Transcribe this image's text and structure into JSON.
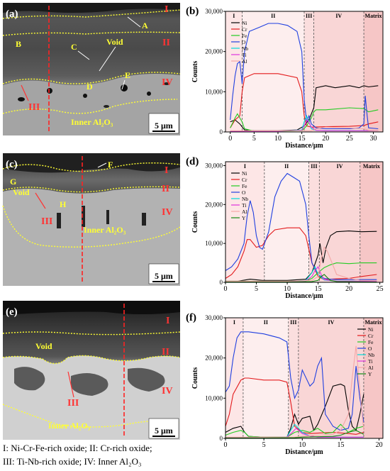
{
  "panels": [
    {
      "id": "a",
      "tag": "(a)",
      "scale_bar": "5 μm",
      "annotations": {
        "I": "I",
        "II": "II",
        "III": "III",
        "IV": "IV",
        "A": "A",
        "B": "B",
        "C": "C",
        "D": "D",
        "E": "E",
        "void": "Void",
        "inner": "Inner Al₂O₃"
      }
    },
    {
      "id": "c",
      "tag": "(c)",
      "scale_bar": "5 μm",
      "annotations": {
        "I": "I",
        "II": "II",
        "III": "III",
        "IV": "IV",
        "F": "F",
        "G": "G",
        "H": "H",
        "void": "Void",
        "inner": "Inner Al₂O₃"
      }
    },
    {
      "id": "e",
      "tag": "(e)",
      "scale_bar": "5 μm",
      "annotations": {
        "I": "I",
        "II": "II",
        "III": "III",
        "IV": "IV",
        "void": "Void",
        "inner": "Inner Al₂O₃"
      }
    }
  ],
  "caption_lines": [
    "I: Ni-Cr-Fe-rich oxide;  II: Cr-rich oxide;",
    "III: Ti-Nb-rich oxide;  IV: Inner Al₂O₃"
  ],
  "colors": {
    "Ni": "#000000",
    "Cr": "#e31a1c",
    "Fe": "#22cc22",
    "O": "#1f3fe0",
    "Nb": "#00d8d8",
    "Ti": "#dd33dd",
    "Al": "#f4a6a6",
    "Y": "#118811"
  },
  "chart_data": [
    {
      "type": "line",
      "tag": "(b)",
      "xlabel": "Distance/μm",
      "ylabel": "Counts",
      "xlim": [
        -1,
        32
      ],
      "ylim": [
        0,
        30000
      ],
      "xticks": [
        0,
        5,
        10,
        15,
        20,
        25,
        30
      ],
      "yticks": [
        0,
        10000,
        20000,
        30000
      ],
      "ytick_labels": [
        "0",
        "10,000",
        "20,000",
        "30,000"
      ],
      "legend_position": "top-left",
      "zones": [
        {
          "label": "I",
          "x0": -1,
          "x1": 2.5
        },
        {
          "label": "II",
          "x0": 2.5,
          "x1": 15.5
        },
        {
          "label": "III",
          "x0": 15.5,
          "x1": 17.5
        },
        {
          "label": "IV",
          "x0": 17.5,
          "x1": 28
        },
        {
          "label": "Matrix",
          "x0": 28,
          "x1": 32
        }
      ],
      "series": [
        {
          "name": "Ni",
          "x": [
            0,
            1,
            2,
            3,
            5,
            10,
            14,
            15.5,
            16.5,
            17.5,
            18,
            20,
            22,
            25,
            27,
            28,
            29,
            31
          ],
          "y": [
            2500,
            3000,
            2000,
            500,
            300,
            300,
            500,
            1500,
            3000,
            6000,
            11000,
            11500,
            11000,
            11500,
            11000,
            11500,
            11200,
            11500
          ]
        },
        {
          "name": "Cr",
          "x": [
            0,
            1,
            2,
            2.5,
            3,
            5,
            10,
            14,
            15,
            15.5,
            16,
            17,
            20,
            25,
            28,
            29,
            31
          ],
          "y": [
            1000,
            3000,
            4000,
            10000,
            13500,
            14500,
            14500,
            13500,
            10000,
            4000,
            1500,
            1200,
            1300,
            1400,
            1600,
            2000,
            2500
          ]
        },
        {
          "name": "Fe",
          "x": [
            0,
            1,
            1.5,
            2.5,
            3,
            5,
            10,
            15,
            16,
            17,
            17.5,
            18,
            20,
            25,
            28,
            29,
            31
          ],
          "y": [
            1000,
            3500,
            4500,
            2500,
            800,
            200,
            200,
            300,
            1500,
            3500,
            5000,
            5500,
            5500,
            6000,
            5800,
            5000,
            5500
          ]
        },
        {
          "name": "O",
          "x": [
            0,
            0.5,
            1,
            1.5,
            2,
            2.5,
            3,
            4,
            6,
            8,
            10,
            12,
            14,
            15,
            15.5,
            16,
            16.5,
            17,
            18,
            20,
            25,
            27,
            28,
            28.3,
            28.7,
            29,
            31
          ],
          "y": [
            3000,
            9000,
            14000,
            17000,
            17500,
            12000,
            20000,
            25000,
            26000,
            27000,
            27000,
            26500,
            25000,
            20000,
            8000,
            2500,
            4000,
            2000,
            1000,
            800,
            800,
            1000,
            2000,
            9000,
            4000,
            1000,
            800
          ]
        },
        {
          "name": "Nb",
          "x": [
            0,
            5,
            10,
            15,
            15.5,
            16,
            16.5,
            17,
            18,
            20,
            25,
            31
          ],
          "y": [
            200,
            200,
            200,
            500,
            2500,
            4000,
            2500,
            800,
            400,
            300,
            300,
            300
          ]
        },
        {
          "name": "Ti",
          "x": [
            0,
            5,
            10,
            15,
            15.7,
            16.2,
            17,
            18,
            20,
            25,
            31
          ],
          "y": [
            200,
            200,
            200,
            400,
            2000,
            3000,
            1200,
            400,
            300,
            300,
            300
          ]
        },
        {
          "name": "Al",
          "x": [
            0,
            5,
            10,
            15,
            17,
            18,
            20,
            25,
            28,
            29,
            31
          ],
          "y": [
            300,
            300,
            300,
            300,
            300,
            800,
            1200,
            1000,
            800,
            400,
            300
          ]
        }
      ]
    },
    {
      "type": "line",
      "tag": "(d)",
      "xlabel": "Distance/μm",
      "ylabel": "Counts",
      "xlim": [
        0,
        25.5
      ],
      "ylim": [
        0,
        31000
      ],
      "xticks": [
        0,
        5,
        10,
        15,
        20,
        25
      ],
      "yticks": [
        0,
        10000,
        20000,
        30000
      ],
      "ytick_labels": [
        "0",
        "10,000",
        "20,000",
        "30,000"
      ],
      "legend_position": "top-left",
      "zones": [
        {
          "label": "I",
          "x0": 0,
          "x1": 6.3
        },
        {
          "label": "II",
          "x0": 6.3,
          "x1": 13.5
        },
        {
          "label": "III",
          "x0": 13.5,
          "x1": 15.2
        },
        {
          "label": "IV",
          "x0": 15.2,
          "x1": 21.8
        },
        {
          "label": "Matrix",
          "x0": 21.8,
          "x1": 25.5
        }
      ],
      "series": [
        {
          "name": "Ni",
          "x": [
            0,
            2,
            4,
            6,
            10,
            13,
            14,
            15,
            15.3,
            15.8,
            16.3,
            17,
            18,
            20,
            22,
            24.5
          ],
          "y": [
            300,
            300,
            800,
            500,
            500,
            800,
            2500,
            7000,
            10000,
            5000,
            9000,
            12000,
            13000,
            13200,
            13000,
            13100
          ]
        },
        {
          "name": "Cr",
          "x": [
            0,
            1,
            2,
            3,
            3.5,
            4,
            5,
            6,
            7,
            8,
            10,
            12,
            13,
            14,
            15,
            16,
            18,
            20,
            22,
            24.5
          ],
          "y": [
            1000,
            2000,
            4000,
            8000,
            11000,
            11000,
            9000,
            9500,
            12000,
            13500,
            14000,
            14000,
            12000,
            5000,
            1500,
            700,
            900,
            1000,
            1500,
            2000
          ]
        },
        {
          "name": "Fe",
          "x": [
            0,
            5,
            10,
            13,
            14,
            15,
            16,
            17,
            18,
            20,
            22,
            24.5
          ],
          "y": [
            300,
            300,
            300,
            400,
            1000,
            2500,
            3800,
            4500,
            5000,
            4800,
            5000,
            5000
          ]
        },
        {
          "name": "O",
          "x": [
            0,
            1,
            2,
            3,
            3.5,
            4,
            4.5,
            5,
            5.5,
            6,
            7,
            8,
            9,
            10,
            11,
            12,
            13,
            13.5,
            14,
            15,
            16,
            17,
            18,
            20,
            24.5
          ],
          "y": [
            3000,
            4000,
            6000,
            10000,
            17000,
            21000,
            18000,
            12000,
            9000,
            8500,
            13000,
            22000,
            26000,
            28000,
            27000,
            26000,
            20000,
            12000,
            5000,
            2000,
            1000,
            800,
            700,
            700,
            700
          ]
        },
        {
          "name": "Nb",
          "x": [
            0,
            10,
            13,
            14,
            14.5,
            15,
            16,
            18,
            24.5
          ],
          "y": [
            200,
            200,
            500,
            2500,
            4000,
            2000,
            600,
            300,
            300
          ]
        },
        {
          "name": "Ti",
          "x": [
            0,
            10,
            13,
            14,
            14.5,
            15,
            15.5,
            16,
            18,
            24.5
          ],
          "y": [
            200,
            200,
            400,
            1500,
            3000,
            4000,
            2000,
            700,
            300,
            300
          ]
        },
        {
          "name": "Al",
          "x": [
            0,
            10,
            14,
            15,
            15.5,
            16,
            16.5,
            17,
            17.5,
            18,
            20,
            22,
            24.5
          ],
          "y": [
            300,
            300,
            500,
            1500,
            6000,
            9000,
            8000,
            6000,
            4000,
            2000,
            1000,
            500,
            400
          ]
        },
        {
          "name": "Y",
          "x": [
            0,
            10,
            14,
            15,
            15.5,
            16,
            16.5,
            17,
            18,
            24.5
          ],
          "y": [
            100,
            100,
            200,
            500,
            1500,
            2000,
            1200,
            500,
            200,
            100
          ]
        }
      ]
    },
    {
      "type": "line",
      "tag": "(f)",
      "xlabel": "Distance/μm",
      "ylabel": "Counts",
      "xlim": [
        0,
        20.5
      ],
      "ylim": [
        0,
        30000
      ],
      "xticks": [
        0,
        5,
        10,
        15,
        20
      ],
      "yticks": [
        0,
        10000,
        20000,
        30000
      ],
      "ytick_labels": [
        "0",
        "10,000",
        "20,000",
        "30,000"
      ],
      "legend_position": "top-right",
      "zones": [
        {
          "label": "I",
          "x0": 0,
          "x1": 2.3
        },
        {
          "label": "II",
          "x0": 2.3,
          "x1": 8.2
        },
        {
          "label": "III",
          "x0": 8.2,
          "x1": 9.5
        },
        {
          "label": "IV",
          "x0": 9.5,
          "x1": 18
        },
        {
          "label": "Matrix",
          "x0": 18,
          "x1": 20.5
        }
      ],
      "series": [
        {
          "name": "Ni",
          "x": [
            0,
            1,
            2,
            2.5,
            3,
            5,
            8,
            8.5,
            9,
            9.5,
            10,
            11,
            11.5,
            12,
            13,
            14,
            15,
            15.5,
            16,
            16.5,
            17,
            17.5,
            18
          ],
          "y": [
            1500,
            2500,
            3000,
            1500,
            500,
            300,
            300,
            2500,
            6000,
            3500,
            5000,
            5500,
            2000,
            3500,
            8000,
            13000,
            13500,
            13000,
            7000,
            3000,
            2000,
            6000,
            11000
          ]
        },
        {
          "name": "Cr",
          "x": [
            0,
            0.5,
            1,
            2,
            2.5,
            3,
            5,
            7,
            8,
            8.5,
            9,
            10,
            11,
            12,
            14,
            16,
            17,
            18
          ],
          "y": [
            3000,
            6000,
            11000,
            14500,
            15000,
            15000,
            14500,
            14500,
            14000,
            9000,
            3000,
            1500,
            1200,
            1300,
            1500,
            1200,
            1000,
            1500
          ]
        },
        {
          "name": "Fe",
          "x": [
            0,
            1,
            2,
            2.5,
            3,
            5,
            8,
            9,
            10,
            11,
            12,
            13,
            14,
            15,
            16,
            17,
            18
          ],
          "y": [
            800,
            1500,
            2000,
            1500,
            500,
            300,
            300,
            1500,
            2000,
            1500,
            2500,
            1200,
            1500,
            3500,
            1500,
            2500,
            3000
          ]
        },
        {
          "name": "O",
          "x": [
            0,
            0.5,
            1,
            1.5,
            2,
            3,
            5,
            7,
            8,
            8.5,
            9,
            9.5,
            10,
            11,
            11.5,
            12,
            12.5,
            13,
            14,
            15,
            16,
            16.5,
            17,
            17.5,
            18
          ],
          "y": [
            11500,
            13000,
            20000,
            25000,
            26500,
            26500,
            26000,
            25000,
            24000,
            15000,
            10000,
            12000,
            17000,
            13000,
            14000,
            18000,
            20000,
            6000,
            3000,
            2000,
            2500,
            6000,
            18000,
            10000,
            4000
          ]
        },
        {
          "name": "Nb",
          "x": [
            0,
            5,
            8,
            8.5,
            9,
            9.5,
            10,
            11,
            12,
            14,
            16,
            18
          ],
          "y": [
            200,
            200,
            300,
            2000,
            3500,
            2500,
            1500,
            600,
            300,
            300,
            300,
            300
          ]
        },
        {
          "name": "Ti",
          "x": [
            0,
            5,
            8,
            8.7,
            9.2,
            10,
            11,
            12,
            14,
            16,
            18
          ],
          "y": [
            200,
            200,
            300,
            1500,
            2500,
            1200,
            600,
            300,
            300,
            300,
            300
          ]
        },
        {
          "name": "Al",
          "x": [
            0,
            5,
            9,
            10,
            12,
            14,
            15,
            16,
            16.5,
            17,
            17.5,
            18
          ],
          "y": [
            300,
            300,
            300,
            500,
            800,
            1000,
            2000,
            6000,
            15000,
            23000,
            12000,
            2000
          ]
        },
        {
          "name": "Y",
          "x": [
            0,
            5,
            9,
            10,
            12,
            14,
            15,
            16,
            17,
            18
          ],
          "y": [
            100,
            100,
            150,
            300,
            400,
            500,
            800,
            1500,
            2000,
            1000
          ]
        }
      ]
    }
  ]
}
